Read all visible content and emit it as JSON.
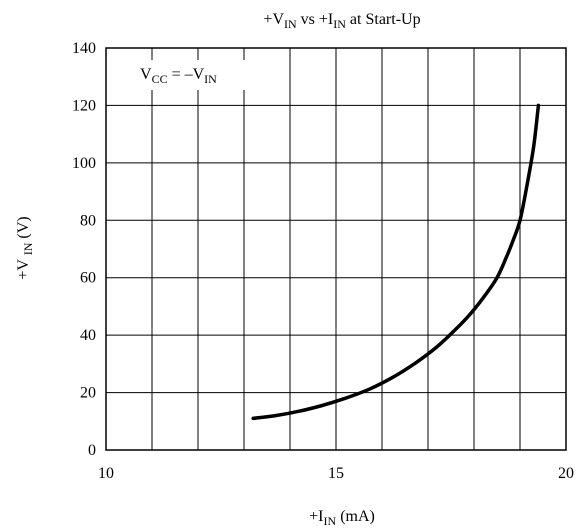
{
  "chart_data": {
    "type": "line",
    "title": {
      "prefix": "+V",
      "sub1": "IN",
      "mid": " vs +I",
      "sub2": "IN",
      "suffix": " at Start-Up"
    },
    "xlabel": {
      "prefix": "+I",
      "sub": "IN",
      "suffix": "  (mA)"
    },
    "ylabel": {
      "prefix": "+V ",
      "sub": "IN",
      "suffix": " (V)"
    },
    "annotation": {
      "v": "V",
      "cc": "CC",
      "eq": " = –V",
      "in": "IN"
    },
    "xlim": [
      10,
      20
    ],
    "ylim": [
      0,
      140
    ],
    "x_ticks": [
      10,
      15,
      20
    ],
    "y_ticks": [
      0,
      20,
      40,
      60,
      80,
      100,
      120,
      140
    ],
    "x_grid_step": 1,
    "y_grid_step": 20,
    "grid": true,
    "series": [
      {
        "color": "#000000",
        "x": [
          13.2,
          13.7,
          14.2,
          14.7,
          15.2,
          15.7,
          16.2,
          16.7,
          17.2,
          17.6,
          17.9,
          18.2,
          18.5,
          18.7,
          18.85,
          19.0,
          19.15,
          19.3,
          19.4
        ],
        "y": [
          11,
          12,
          13.5,
          15.5,
          18,
          21,
          25,
          30,
          36,
          42,
          47,
          53,
          60,
          67,
          73,
          80,
          92,
          106,
          120
        ]
      }
    ]
  }
}
